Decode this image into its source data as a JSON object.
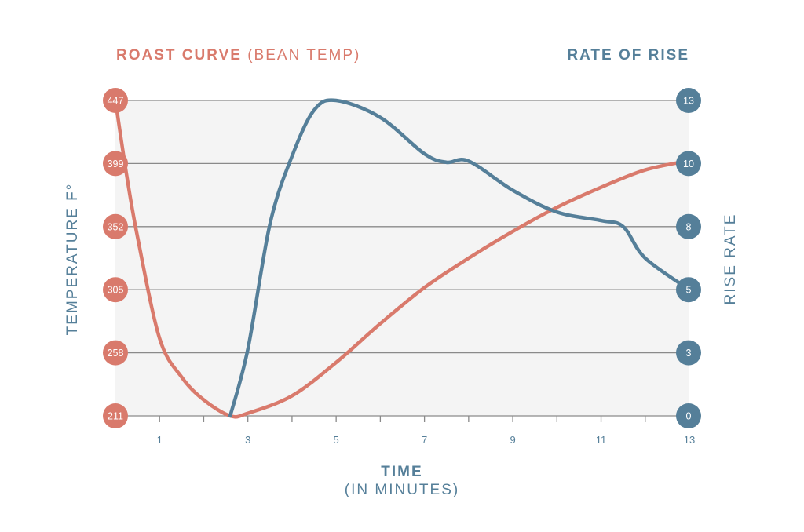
{
  "colors": {
    "temperature": "#d97a6c",
    "rise": "#557f99",
    "plot_bg": "#f4f4f4",
    "grid": "#8a8a8a"
  },
  "chart_data": {
    "type": "line",
    "title_left": {
      "bold": "ROAST CURVE",
      "rest": "(BEAN TEMP)"
    },
    "title_right": "RATE OF RISE",
    "xlabel": {
      "main": "TIME",
      "sub": "(IN MINUTES)"
    },
    "ylabel_left": "TEMPERATURE F°",
    "ylabel_right": "RISE RATE",
    "xlim": [
      0,
      13
    ],
    "x_ticks": [
      1,
      2,
      3,
      4,
      5,
      6,
      7,
      8,
      9,
      10,
      11,
      12,
      13
    ],
    "x_tick_labels": [
      "1",
      "3",
      "5",
      "7",
      "9",
      "11",
      "13"
    ],
    "x_tick_label_values": [
      1,
      3,
      5,
      7,
      9,
      11,
      13
    ],
    "ylim_left": [
      211,
      447
    ],
    "y_left_tick_labels": [
      "211",
      "258",
      "305",
      "352",
      "399",
      "447"
    ],
    "ylim_right": [
      0,
      13
    ],
    "y_right_tick_labels": [
      "0",
      "3",
      "5",
      "8",
      "10",
      "13"
    ],
    "grid": true,
    "series": [
      {
        "axis": "left",
        "color": "#d97a6c",
        "x": [
          0,
          0.25,
          0.5,
          1,
          1.5,
          2,
          2.6,
          3,
          4,
          5,
          6,
          7,
          8,
          9,
          10,
          11,
          12,
          13
        ],
        "y": [
          447,
          392,
          345,
          269,
          240,
          223,
          211,
          213,
          226,
          251,
          280,
          307,
          329,
          349,
          367,
          382,
          395,
          402
        ]
      },
      {
        "axis": "right",
        "color": "#557f99",
        "x": [
          2.6,
          3,
          3.5,
          4,
          4.5,
          5,
          6,
          7,
          7.5,
          8,
          9,
          10,
          11,
          11.5,
          12,
          13
        ],
        "y": [
          0,
          2.75,
          7.9,
          10.7,
          12.6,
          13.0,
          12.3,
          10.8,
          10.45,
          10.5,
          9.3,
          8.4,
          8.05,
          7.8,
          6.5,
          5.2
        ]
      }
    ]
  }
}
